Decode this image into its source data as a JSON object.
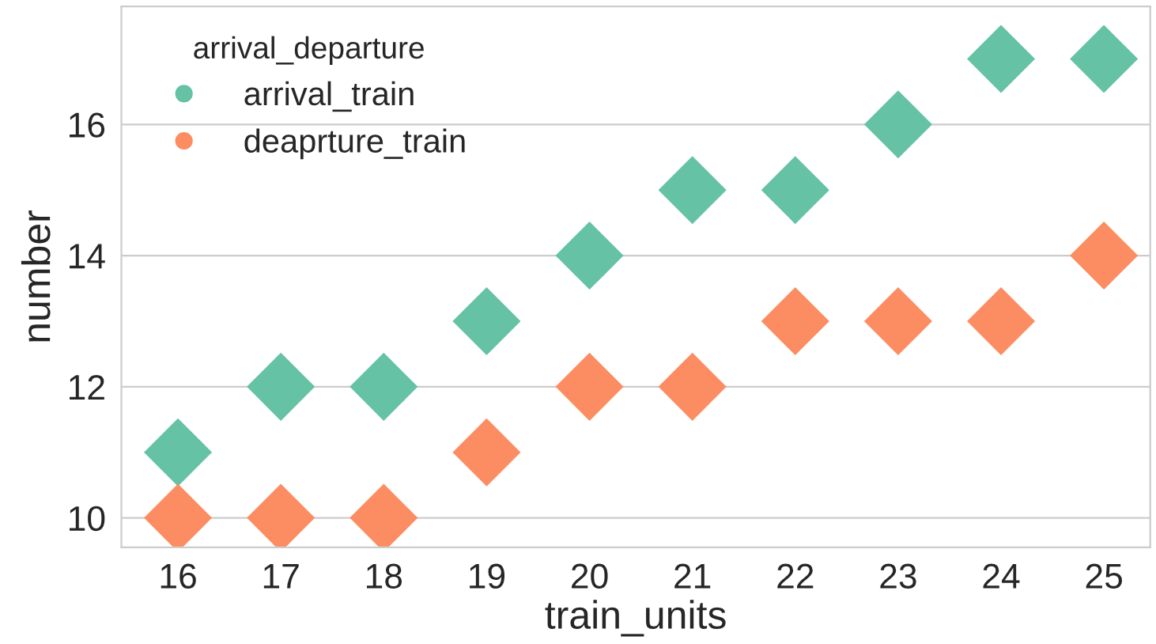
{
  "chart_data": {
    "type": "scatter",
    "xlabel": "train_units",
    "ylabel": "number",
    "legend_title": "arrival_departure",
    "categories": [
      "16",
      "17",
      "18",
      "19",
      "20",
      "21",
      "22",
      "23",
      "24",
      "25"
    ],
    "series": [
      {
        "name": "arrival_train",
        "color": "#66c2a5",
        "values": [
          11,
          12,
          12,
          13,
          14,
          15,
          15,
          16,
          17,
          17
        ]
      },
      {
        "name": "deaprture_train",
        "color": "#fc8d62",
        "values": [
          10,
          10,
          10,
          11,
          12,
          12,
          13,
          13,
          13,
          14
        ]
      }
    ],
    "ylim": [
      9.55,
      17.8
    ],
    "yticks": [
      10,
      12,
      14,
      16
    ],
    "grid": "y",
    "legend": "top left",
    "marker": "diamond"
  }
}
